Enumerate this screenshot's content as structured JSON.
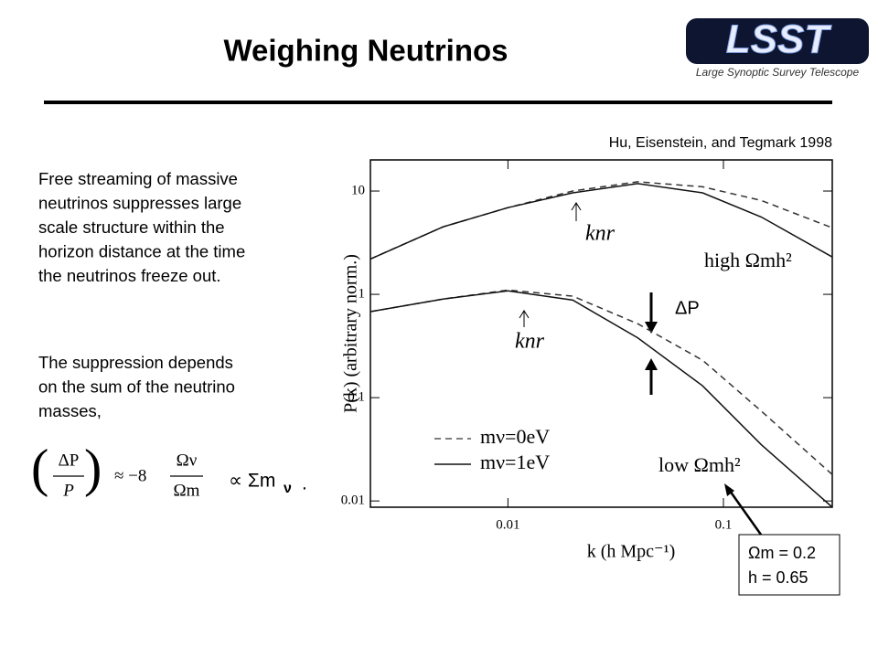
{
  "title": "Weighing Neutrinos",
  "logo": {
    "name": "LSST",
    "subtitle": "Large Synoptic Survey Telescope"
  },
  "citation": "Hu, Eisenstein, and Tegmark 1998",
  "paragraphs": [
    [
      "Free streaming of massive",
      "neutrinos suppresses large",
      "scale structure within the",
      "horizon distance at the time",
      "the neutrinos freeze out."
    ],
    [
      "The suppression depends",
      "on the sum of the neutrino",
      "masses,"
    ]
  ],
  "equation": {
    "lhs_num": "ΔP",
    "lhs_den": "P",
    "approx": "≈ −8",
    "rhs_num": "Ων",
    "rhs_den": "Ωm",
    "prop": "∝ Σm",
    "prop_sub": "ν",
    "end": "."
  },
  "parameter_box": [
    "Ωm = 0.2",
    "h = 0.65"
  ],
  "chart_data": {
    "type": "line",
    "xlabel": "k (h Mpc⁻¹)",
    "ylabel": "P(k)   (arbitrary norm.)",
    "xscale": "log",
    "yscale": "log",
    "xlim": [
      0.0023,
      0.32
    ],
    "ylim": [
      0.0087,
      20
    ],
    "xticks": [
      0.01,
      0.1
    ],
    "yticks": [
      0.01,
      0.1,
      1,
      10
    ],
    "x": [
      0.0023,
      0.005,
      0.01,
      0.02,
      0.04,
      0.08,
      0.15,
      0.32
    ],
    "series": [
      {
        "name": "mν=0eV",
        "color": "#333333",
        "dashed": true,
        "values": [
          [
            2.2,
            4.5,
            6.9,
            10,
            12.3,
            11,
            8.1,
            4.4
          ],
          [
            0.68,
            0.9,
            1.1,
            0.96,
            0.52,
            0.23,
            0.074,
            0.018
          ]
        ]
      },
      {
        "name": "mν=1eV",
        "color": "#111111",
        "dashed": false,
        "values": [
          [
            2.2,
            4.5,
            6.9,
            9.6,
            11.8,
            9.6,
            5.6,
            2.3
          ],
          [
            0.68,
            0.9,
            1.08,
            0.88,
            0.38,
            0.13,
            0.035,
            0.0087
          ]
        ]
      }
    ],
    "annotations": [
      "knr",
      "knr",
      "high Ωmh²",
      "low Ωmh²",
      "ΔP"
    ]
  }
}
